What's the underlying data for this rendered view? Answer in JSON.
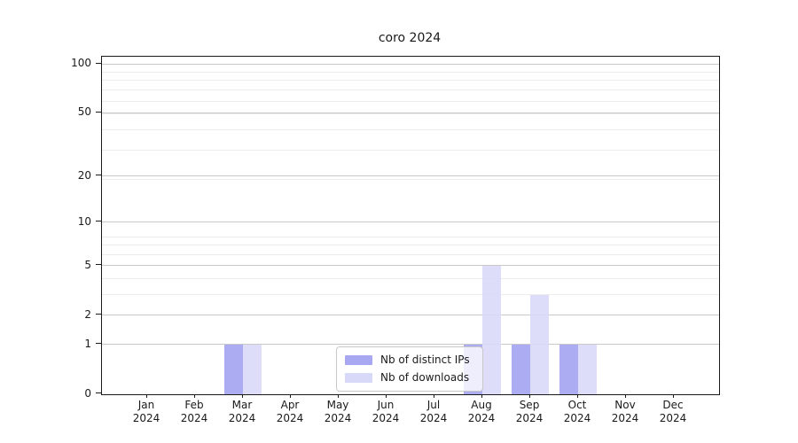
{
  "title": "coro 2024",
  "colors": {
    "background": "#ffffff",
    "axis": "#1a1a1a",
    "grid_major": "#c9c9c9",
    "grid_minor": "#ededed",
    "legend_border": "#c8c8c8",
    "series_distinct_ips": "#a8a8f2",
    "series_downloads": "#d8d8f8"
  },
  "chart_data": {
    "type": "bar",
    "title": "coro 2024",
    "categories": [
      {
        "month": "Jan",
        "year": "2024"
      },
      {
        "month": "Feb",
        "year": "2024"
      },
      {
        "month": "Mar",
        "year": "2024"
      },
      {
        "month": "Apr",
        "year": "2024"
      },
      {
        "month": "May",
        "year": "2024"
      },
      {
        "month": "Jun",
        "year": "2024"
      },
      {
        "month": "Jul",
        "year": "2024"
      },
      {
        "month": "Aug",
        "year": "2024"
      },
      {
        "month": "Sep",
        "year": "2024"
      },
      {
        "month": "Oct",
        "year": "2024"
      },
      {
        "month": "Nov",
        "year": "2024"
      },
      {
        "month": "Dec",
        "year": "2024"
      }
    ],
    "series": [
      {
        "name": "Nb of distinct IPs",
        "color": "#a8a8f2",
        "values": [
          0,
          0,
          1,
          0,
          0,
          0,
          0,
          1,
          1,
          1,
          0,
          0
        ]
      },
      {
        "name": "Nb of downloads",
        "color": "#d8d8f8",
        "values": [
          0,
          0,
          1,
          0,
          0,
          0,
          0,
          5,
          3,
          1,
          0,
          0
        ]
      }
    ],
    "xlabel": "",
    "ylabel": "",
    "yscale": "log1p",
    "yticks": [
      0,
      1,
      2,
      5,
      10,
      20,
      50,
      100
    ],
    "ylim": [
      0,
      110
    ],
    "grid": true,
    "legend_position": "inside-bottom-center"
  }
}
